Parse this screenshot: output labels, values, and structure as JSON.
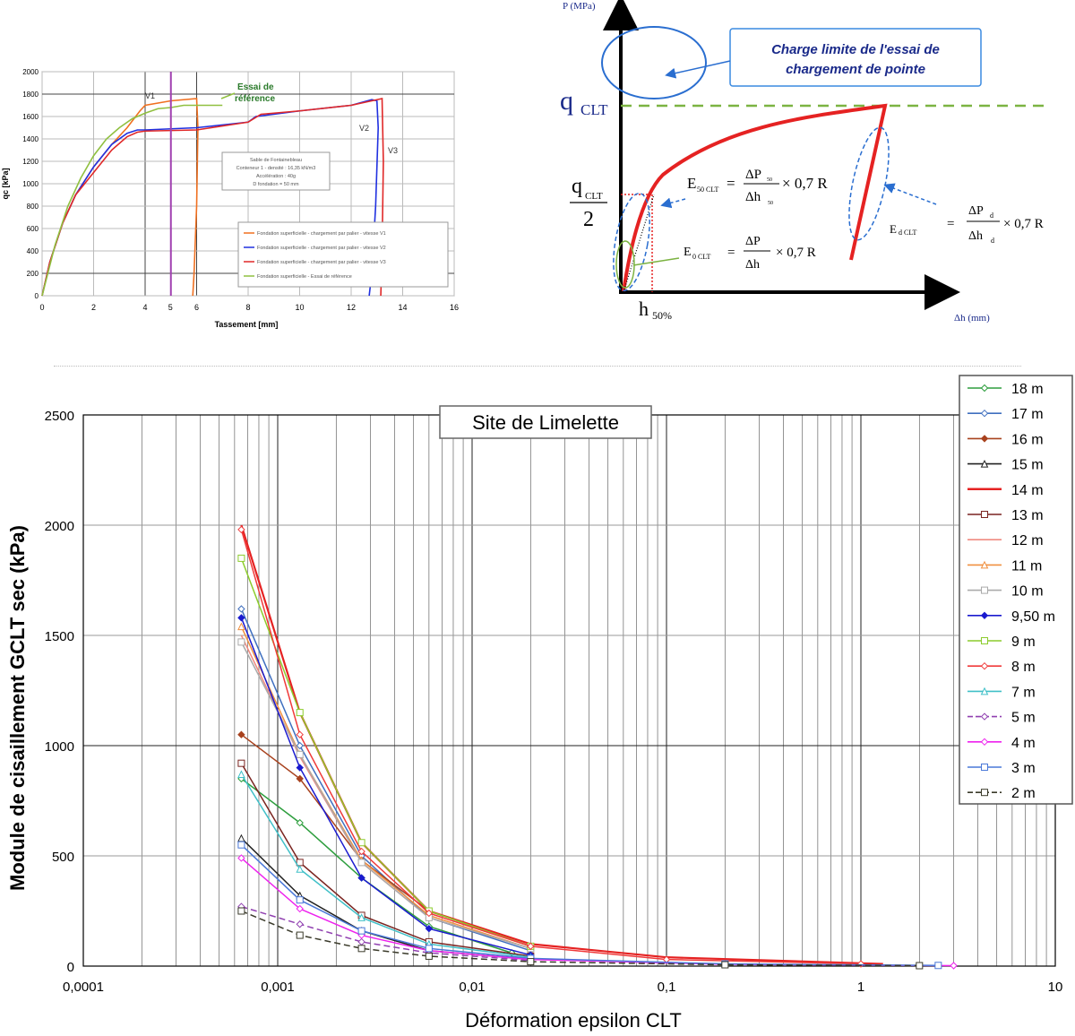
{
  "chart1": {
    "type": "line",
    "xlabel": "Tassement [mm]",
    "ylabel": "qc [kPa]",
    "xlim": [
      0,
      16
    ],
    "ylim": [
      0,
      2000
    ],
    "xticks": [
      "0",
      "2",
      "4",
      "6",
      "8",
      "10",
      "12",
      "14",
      "16"
    ],
    "yticks": [
      "0",
      "200",
      "400",
      "600",
      "800",
      "1000",
      "1200",
      "1400",
      "1600",
      "1800",
      "2000"
    ],
    "info_box": [
      "Sable de Fontainebleau",
      "Conteneur 1 - densité : 16,35 kN/m3",
      "Accélération : 40g",
      "D fondation = 50 mm"
    ],
    "annotations": {
      "v1": "V1",
      "v2": "V2",
      "v3": "V3",
      "ref1": "Essai de",
      "ref2": "référence",
      "mark": "5"
    },
    "colors": {
      "v1": "#f07020",
      "v2": "#2030e0",
      "v3": "#e02828",
      "ref": "#90c040",
      "mark": "#a040b0"
    },
    "series": [
      {
        "name": "Fondation superficielle - chargement par palier - vitesse V1",
        "color": "#f07020",
        "x": [
          0,
          0.3,
          0.8,
          1.3,
          2,
          2.7,
          3.3,
          3.8,
          4,
          5,
          6,
          6.05,
          6,
          5.9,
          5.85
        ],
        "y": [
          0,
          300,
          650,
          900,
          1150,
          1350,
          1500,
          1650,
          1700,
          1740,
          1760,
          1500,
          800,
          200,
          0
        ]
      },
      {
        "name": "Fondation superficielle - chargement par palier - vitesse V2",
        "color": "#2030e0",
        "x": [
          0,
          0.3,
          0.8,
          1.3,
          2,
          2.7,
          3.3,
          3.7,
          4,
          6,
          8,
          8.3,
          10,
          12,
          12.8,
          13,
          13.05,
          12.95,
          12.8,
          12.7
        ],
        "y": [
          0,
          300,
          650,
          900,
          1150,
          1350,
          1450,
          1480,
          1480,
          1500,
          1550,
          1600,
          1650,
          1700,
          1750,
          1740,
          1500,
          800,
          200,
          0
        ]
      },
      {
        "name": "Fondation superficielle - chargement par palier - vitesse V3",
        "color": "#e02828",
        "x": [
          0,
          0.3,
          0.8,
          1.3,
          2,
          2.7,
          3.3,
          3.7,
          4,
          6,
          8,
          8.5,
          10,
          12,
          13,
          13.2,
          13.25,
          13.2,
          13.15
        ],
        "y": [
          0,
          300,
          650,
          900,
          1100,
          1300,
          1420,
          1460,
          1470,
          1480,
          1550,
          1620,
          1650,
          1700,
          1750,
          1760,
          1200,
          400,
          0
        ]
      },
      {
        "name": "Fondation superficielle - Essai de référence",
        "color": "#90c040",
        "x": [
          0,
          0.5,
          1,
          1.5,
          2,
          2.5,
          3,
          3.5,
          4,
          4.5,
          5,
          5.5,
          6,
          6.5,
          7
        ],
        "y": [
          0,
          450,
          800,
          1050,
          1250,
          1400,
          1500,
          1580,
          1630,
          1670,
          1680,
          1700,
          1700,
          1700,
          1700
        ]
      }
    ]
  },
  "chart2": {
    "axis_y": "P (MPa)",
    "axis_x": "Δh (mm)",
    "callout": [
      "Charge limite de l'essai de",
      "chargement de pointe"
    ],
    "q_label": "q",
    "q_sub": "CLT",
    "q_half_num": "q",
    "q_half_sub": "CLT",
    "q_half_den": "2",
    "h50": "h",
    "h50_sub": "50%",
    "e50": {
      "lhs": "E",
      "sub": "50 CLT",
      "num": "ΔP",
      "num_sub": "50",
      "den": "Δh",
      "den_sub": "50",
      "tail": "× 0,7 R",
      "eq": "="
    },
    "e0": {
      "lhs": "E",
      "sub": "0 CLT",
      "num": "ΔP",
      "den": "Δh",
      "tail": "× 0,7 R",
      "eq": "="
    },
    "ed": {
      "lhs": "E",
      "sub": "d CLT",
      "num": "ΔP",
      "num_sub": "d",
      "den": "Δh",
      "den_sub": "d",
      "tail": "× 0,7 R",
      "eq": "="
    }
  },
  "chart_data": {
    "type": "line",
    "title": "Site de Limelette",
    "xlabel": "Déformation epsilon CLT",
    "ylabel": "Module de cisaillement GCLT sec (kPa)",
    "x_scale": "log",
    "xlim": [
      0.0001,
      10
    ],
    "ylim": [
      0,
      2500
    ],
    "xticks": [
      "0,0001",
      "0,001",
      "0,01",
      "0,1",
      "1",
      "10"
    ],
    "yticks": [
      "0",
      "500",
      "1000",
      "1500",
      "2000",
      "2500"
    ],
    "grid": true,
    "legend": "right",
    "series": [
      {
        "name": "18 m",
        "color": "#2e9e3e",
        "marker": "diamond-open",
        "dash": false,
        "x": [
          0.00065,
          0.0013,
          0.0027,
          0.006,
          0.016
        ],
        "y": [
          850,
          650,
          400,
          180,
          60
        ]
      },
      {
        "name": "17 m",
        "color": "#3f6fbf",
        "marker": "diamond-open",
        "dash": false,
        "x": [
          0.00065,
          0.0013,
          0.0027,
          0.006,
          0.02
        ],
        "y": [
          1620,
          1000,
          500,
          220,
          70
        ]
      },
      {
        "name": "16 m",
        "color": "#a8421e",
        "marker": "diamond",
        "dash": false,
        "x": [
          0.00065,
          0.0013,
          0.0027,
          0.006,
          0.02
        ],
        "y": [
          1050,
          850,
          480,
          250,
          90
        ]
      },
      {
        "name": "15 m",
        "color": "#222222",
        "marker": "triangle-open",
        "dash": false,
        "x": [
          0.00065,
          0.0013,
          0.0027,
          0.006,
          0.02
        ],
        "y": [
          580,
          320,
          160,
          70,
          30
        ]
      },
      {
        "name": "14 m",
        "color": "#e52222",
        "marker": "none",
        "dash": false,
        "x": [
          0.00065,
          0.0013,
          0.0027,
          0.006,
          0.02,
          0.1,
          1.3
        ],
        "y": [
          2000,
          1150,
          560,
          250,
          100,
          40,
          10
        ]
      },
      {
        "name": "13 m",
        "color": "#7a2420",
        "marker": "square-open",
        "dash": false,
        "x": [
          0.00065,
          0.0013,
          0.0027,
          0.006,
          0.02
        ],
        "y": [
          920,
          470,
          230,
          110,
          45
        ]
      },
      {
        "name": "12 m",
        "color": "#f08a80",
        "marker": "none",
        "dash": false,
        "x": [
          0.00065,
          0.0013,
          0.0027,
          0.006,
          0.02
        ],
        "y": [
          1500,
          950,
          470,
          220,
          80
        ]
      },
      {
        "name": "11 m",
        "color": "#f09040",
        "marker": "triangle-open",
        "dash": false,
        "x": [
          0.00065,
          0.0013,
          0.0027,
          0.006,
          0.02
        ],
        "y": [
          1540,
          960,
          480,
          230,
          80
        ]
      },
      {
        "name": "10 m",
        "color": "#aaaaaa",
        "marker": "square-open",
        "dash": false,
        "x": [
          0.00065,
          0.0013,
          0.0027,
          0.006,
          0.02
        ],
        "y": [
          1470,
          960,
          470,
          220,
          80
        ]
      },
      {
        "name": "9,50 m",
        "color": "#1a1acf",
        "marker": "diamond",
        "dash": false,
        "x": [
          0.00065,
          0.0013,
          0.0027,
          0.006,
          0.02
        ],
        "y": [
          1580,
          900,
          400,
          170,
          50
        ]
      },
      {
        "name": "9 m",
        "color": "#8ccc2c",
        "marker": "square-open",
        "dash": false,
        "x": [
          0.00065,
          0.0013,
          0.0027,
          0.006,
          0.02
        ],
        "y": [
          1850,
          1150,
          560,
          250,
          90
        ]
      },
      {
        "name": "8 m",
        "color": "#f03a3a",
        "marker": "diamond-open",
        "dash": false,
        "x": [
          0.00065,
          0.0013,
          0.0027,
          0.006,
          0.02,
          0.1,
          1
        ],
        "y": [
          1980,
          1050,
          520,
          240,
          90,
          30,
          10
        ]
      },
      {
        "name": "7 m",
        "color": "#40c0c8",
        "marker": "triangle-open",
        "dash": false,
        "x": [
          0.00065,
          0.0013,
          0.0027,
          0.006,
          0.02
        ],
        "y": [
          870,
          440,
          220,
          100,
          40
        ]
      },
      {
        "name": "5 m",
        "color": "#9040b0",
        "marker": "diamond-open",
        "dash": true,
        "x": [
          0.00065,
          0.0013,
          0.0027,
          0.006,
          0.02
        ],
        "y": [
          270,
          190,
          110,
          60,
          25
        ]
      },
      {
        "name": "4 m",
        "color": "#ee22ee",
        "marker": "diamond-open",
        "dash": false,
        "x": [
          0.00065,
          0.0013,
          0.0027,
          0.006,
          0.02,
          0.2,
          3
        ],
        "y": [
          490,
          260,
          140,
          70,
          30,
          8,
          2
        ]
      },
      {
        "name": "3 m",
        "color": "#4a78d8",
        "marker": "square-open",
        "dash": false,
        "x": [
          0.00065,
          0.0013,
          0.0027,
          0.006,
          0.02,
          0.2,
          2.5
        ],
        "y": [
          550,
          300,
          160,
          80,
          35,
          10,
          3
        ]
      },
      {
        "name": "2 m",
        "color": "#3a3a2a",
        "marker": "square-open",
        "dash": true,
        "x": [
          0.00065,
          0.0013,
          0.0027,
          0.006,
          0.02,
          0.2,
          2
        ],
        "y": [
          250,
          140,
          80,
          45,
          20,
          6,
          2
        ]
      }
    ]
  }
}
